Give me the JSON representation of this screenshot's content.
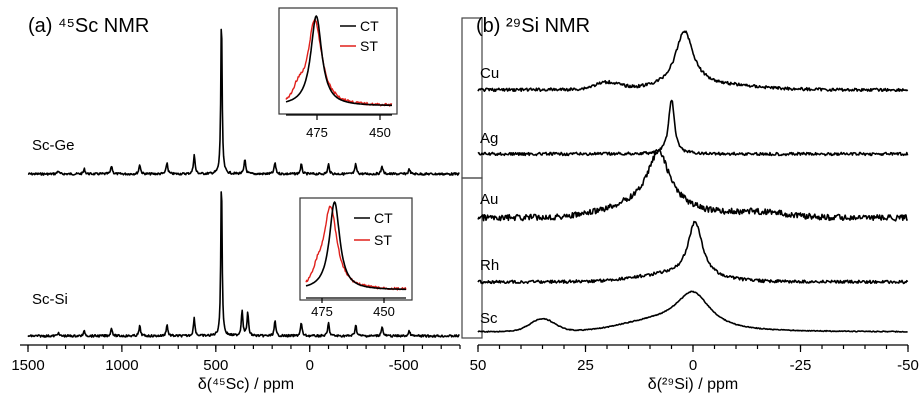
{
  "chart_data": [
    {
      "type": "line",
      "panel": "a",
      "title": "(a) ⁴⁵Sc NMR",
      "xlabel": "δ(⁴⁵Sc) / ppm",
      "xlim": [
        1500,
        -800
      ],
      "x_ticks": [
        1500,
        1000,
        500,
        0,
        -500
      ],
      "x_tick_labels": [
        "1500",
        "1000",
        "500",
        "0",
        "-500"
      ],
      "x_inverted": true,
      "series": [
        {
          "name": "Sc-Ge",
          "main_peak": 475,
          "peaks": [
            1340,
            1200,
            1055,
            905,
            760,
            615,
            470,
            345,
            185,
            45,
            -100,
            -245,
            -385,
            -530
          ],
          "relative_peak_heights": [
            0.02,
            0.03,
            0.05,
            0.06,
            0.07,
            0.12,
            1.0,
            0.09,
            0.07,
            0.06,
            0.06,
            0.06,
            0.05,
            0.03
          ]
        },
        {
          "name": "Sc-Si",
          "main_peak": 475,
          "peaks": [
            1340,
            1200,
            1055,
            905,
            760,
            615,
            470,
            360,
            330,
            185,
            45,
            -100,
            -245,
            -385,
            -530
          ],
          "relative_peak_heights": [
            0.02,
            0.03,
            0.05,
            0.06,
            0.07,
            0.11,
            1.0,
            0.16,
            0.14,
            0.09,
            0.08,
            0.08,
            0.07,
            0.06,
            0.03
          ]
        }
      ],
      "insets": [
        {
          "for": "Sc-Ge",
          "xlim": [
            485,
            450
          ],
          "x_tick_labels": [
            "475",
            "450"
          ],
          "legend": [
            "CT",
            "ST"
          ]
        },
        {
          "for": "Sc-Si",
          "xlim": [
            485,
            450
          ],
          "x_tick_labels": [
            "475",
            "450"
          ],
          "legend": [
            "CT",
            "ST"
          ]
        }
      ],
      "colors": {
        "CT": "#000000",
        "ST": "#e0201b"
      }
    },
    {
      "type": "line",
      "panel": "b",
      "title": "(b) ²⁹Si NMR",
      "xlabel": "δ(²⁹Si) / ppm",
      "xlim": [
        50,
        -50
      ],
      "x_ticks": [
        50,
        25,
        0,
        -25,
        -50
      ],
      "x_tick_labels": [
        "50",
        "25",
        "0",
        "-25",
        "-50"
      ],
      "x_inverted": true,
      "series": [
        {
          "name": "Cu",
          "peak": 2,
          "fwhm_ppm": 5,
          "shoulders": [
            20
          ]
        },
        {
          "name": "Ag",
          "peak": 5,
          "fwhm_ppm": 1.5,
          "shoulders": []
        },
        {
          "name": "Au",
          "peak": 8,
          "fwhm_ppm": 6,
          "shoulders": []
        },
        {
          "name": "Rh",
          "peak": -0.5,
          "fwhm_ppm": 3.5,
          "shoulders": []
        },
        {
          "name": "Sc",
          "peak": 0,
          "fwhm_ppm": 9,
          "shoulders": [
            35
          ]
        }
      ]
    }
  ]
}
